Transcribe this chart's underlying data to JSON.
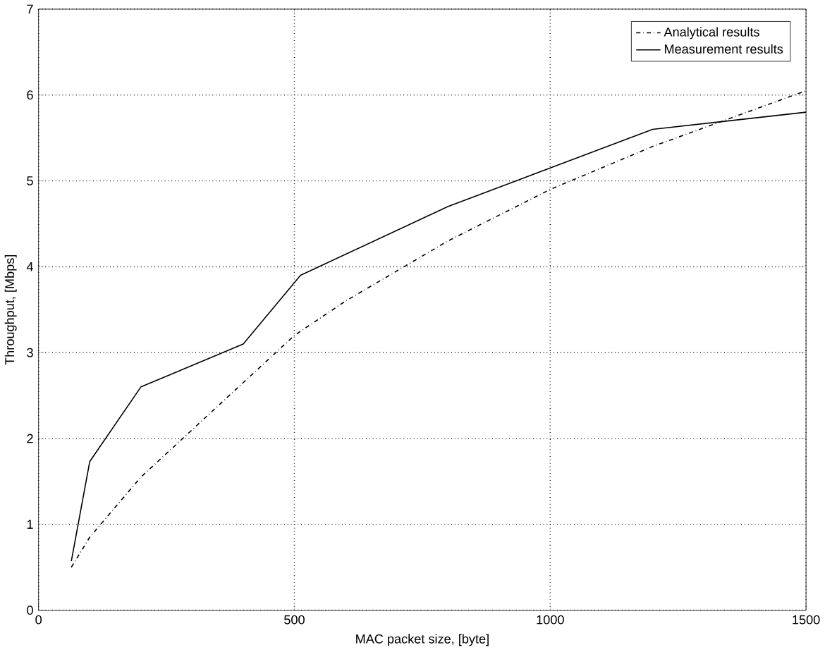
{
  "chart_data": {
    "type": "line",
    "xlabel": "MAC packet size, [byte]",
    "ylabel": "Throughput, [Mbps]",
    "xlim": [
      0,
      1500
    ],
    "ylim": [
      0,
      7
    ],
    "xticks": [
      0,
      500,
      1000,
      1500
    ],
    "yticks": [
      0,
      1,
      2,
      3,
      4,
      5,
      6,
      7
    ],
    "grid": true,
    "legend": "top right",
    "marker": "none",
    "series": [
      {
        "name": "Analytical results",
        "color": "#000000",
        "line_style": "dashed",
        "x": [
          64,
          100,
          200,
          300,
          400,
          500,
          600,
          800,
          1000,
          1200,
          1500
        ],
        "values": [
          0.5,
          0.85,
          1.55,
          2.1,
          2.65,
          3.2,
          3.6,
          4.3,
          4.9,
          5.4,
          6.05
        ]
      },
      {
        "name": "Measurement results",
        "color": "#000000",
        "line_style": "solid",
        "x": [
          64,
          100,
          200,
          400,
          512,
          800,
          1000,
          1200,
          1500
        ],
        "values": [
          0.57,
          1.73,
          2.6,
          3.1,
          3.9,
          4.7,
          5.15,
          5.6,
          5.8
        ]
      }
    ]
  }
}
